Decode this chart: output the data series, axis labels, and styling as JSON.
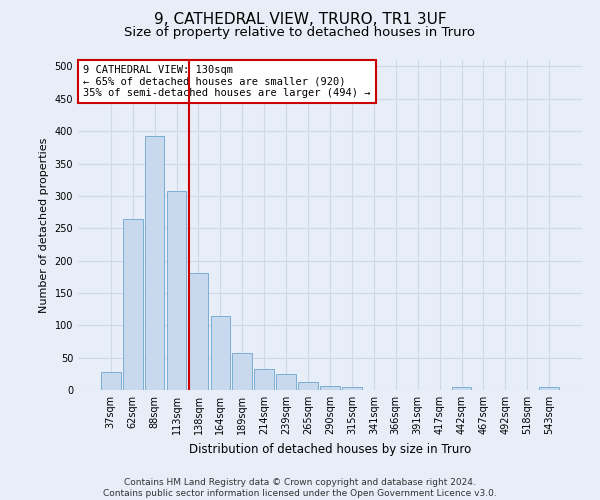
{
  "title": "9, CATHEDRAL VIEW, TRURO, TR1 3UF",
  "subtitle": "Size of property relative to detached houses in Truro",
  "xlabel": "Distribution of detached houses by size in Truro",
  "ylabel": "Number of detached properties",
  "categories": [
    "37sqm",
    "62sqm",
    "88sqm",
    "113sqm",
    "138sqm",
    "164sqm",
    "189sqm",
    "214sqm",
    "239sqm",
    "265sqm",
    "290sqm",
    "315sqm",
    "341sqm",
    "366sqm",
    "391sqm",
    "417sqm",
    "442sqm",
    "467sqm",
    "492sqm",
    "518sqm",
    "543sqm"
  ],
  "values": [
    28,
    265,
    393,
    308,
    181,
    115,
    57,
    33,
    25,
    13,
    6,
    5,
    0,
    0,
    0,
    0,
    5,
    0,
    0,
    0,
    5
  ],
  "bar_color": "#c9d9ed",
  "bar_edge_color": "#7badd4",
  "vline_x_index": 4,
  "vline_color": "#cc0000",
  "annotation_text": "9 CATHEDRAL VIEW: 130sqm\n← 65% of detached houses are smaller (920)\n35% of semi-detached houses are larger (494) →",
  "annotation_box_color": "#ffffff",
  "annotation_box_edge_color": "#cc0000",
  "ylim": [
    0,
    510
  ],
  "yticks": [
    0,
    50,
    100,
    150,
    200,
    250,
    300,
    350,
    400,
    450,
    500
  ],
  "grid_color": "#d0d8e8",
  "background_color": "#e8eef8",
  "footer": "Contains HM Land Registry data © Crown copyright and database right 2024.\nContains public sector information licensed under the Open Government Licence v3.0.",
  "title_fontsize": 11,
  "subtitle_fontsize": 9.5,
  "annotation_fontsize": 7.5,
  "footer_fontsize": 6.5,
  "ylabel_fontsize": 8,
  "xlabel_fontsize": 8.5,
  "tick_fontsize": 7
}
